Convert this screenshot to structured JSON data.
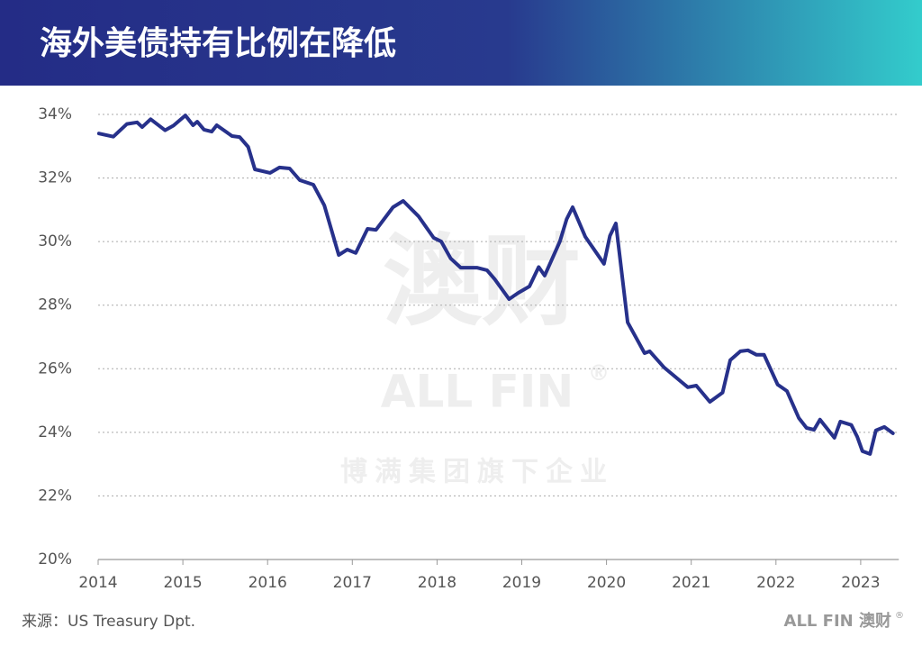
{
  "chart_data": {
    "type": "line",
    "title": "海外美债持有比例在降低",
    "x": [
      2014.01,
      2014.18,
      2014.34,
      2014.46,
      2014.52,
      2014.62,
      2014.79,
      2014.89,
      2015.03,
      2015.12,
      2015.17,
      2015.25,
      2015.34,
      2015.4,
      2015.58,
      2015.67,
      2015.77,
      2015.85,
      2016.03,
      2016.14,
      2016.26,
      2016.38,
      2016.54,
      2016.67,
      2016.84,
      2016.94,
      2017.04,
      2017.18,
      2017.28,
      2017.48,
      2017.6,
      2017.78,
      2017.96,
      2018.05,
      2018.16,
      2018.28,
      2018.47,
      2018.59,
      2018.68,
      2018.85,
      2018.96,
      2019.09,
      2019.2,
      2019.27,
      2019.45,
      2019.53,
      2019.6,
      2019.75,
      2019.97,
      2020.04,
      2020.11,
      2020.25,
      2020.45,
      2020.51,
      2020.68,
      2020.96,
      2021.06,
      2021.22,
      2021.37,
      2021.46,
      2021.58,
      2021.67,
      2021.77,
      2021.86,
      2022.02,
      2022.13,
      2022.27,
      2022.36,
      2022.45,
      2022.52,
      2022.69,
      2022.76,
      2022.89,
      2022.96,
      2023.02,
      2023.11,
      2023.18,
      2023.28,
      2023.38
    ],
    "values": [
      33.4,
      33.3,
      33.7,
      33.75,
      33.6,
      33.85,
      33.5,
      33.65,
      33.97,
      33.66,
      33.77,
      33.52,
      33.46,
      33.66,
      33.32,
      33.29,
      32.98,
      32.27,
      32.16,
      32.33,
      32.3,
      31.93,
      31.79,
      31.14,
      29.58,
      29.75,
      29.64,
      30.4,
      30.37,
      31.08,
      31.28,
      30.8,
      30.12,
      30.0,
      29.47,
      29.18,
      29.18,
      29.1,
      28.82,
      28.19,
      28.39,
      28.59,
      29.2,
      28.93,
      30.0,
      30.71,
      31.08,
      30.15,
      29.3,
      30.18,
      30.57,
      27.46,
      26.49,
      26.55,
      26.04,
      25.42,
      25.47,
      24.96,
      25.25,
      26.27,
      26.55,
      26.58,
      26.44,
      26.44,
      25.5,
      25.3,
      24.45,
      24.14,
      24.08,
      24.4,
      23.83,
      24.34,
      24.23,
      23.86,
      23.41,
      23.32,
      24.06,
      24.17,
      23.97
    ],
    "color": "#27318b",
    "xlim": [
      2014,
      2023.45
    ],
    "xticks": [
      2014,
      2015,
      2016,
      2017,
      2018,
      2019,
      2020,
      2021,
      2022,
      2023
    ],
    "ylim": [
      20,
      34
    ],
    "yticks": [
      {
        "value": 20,
        "label": "20%"
      },
      {
        "value": 22,
        "label": "22%"
      },
      {
        "value": 24,
        "label": "24%"
      },
      {
        "value": 26,
        "label": "26%"
      },
      {
        "value": 28,
        "label": "28%"
      },
      {
        "value": 30,
        "label": "30%"
      },
      {
        "value": 32,
        "label": "32%"
      },
      {
        "value": 34,
        "label": "34%"
      }
    ],
    "grid": true,
    "source": "来源：US Treasury Dpt.",
    "brand": "ALL FIN 澳财",
    "brand_mark": "®",
    "watermark": [
      "澳财",
      "ALL FIN",
      "®",
      "博满集团旗下企业"
    ]
  }
}
